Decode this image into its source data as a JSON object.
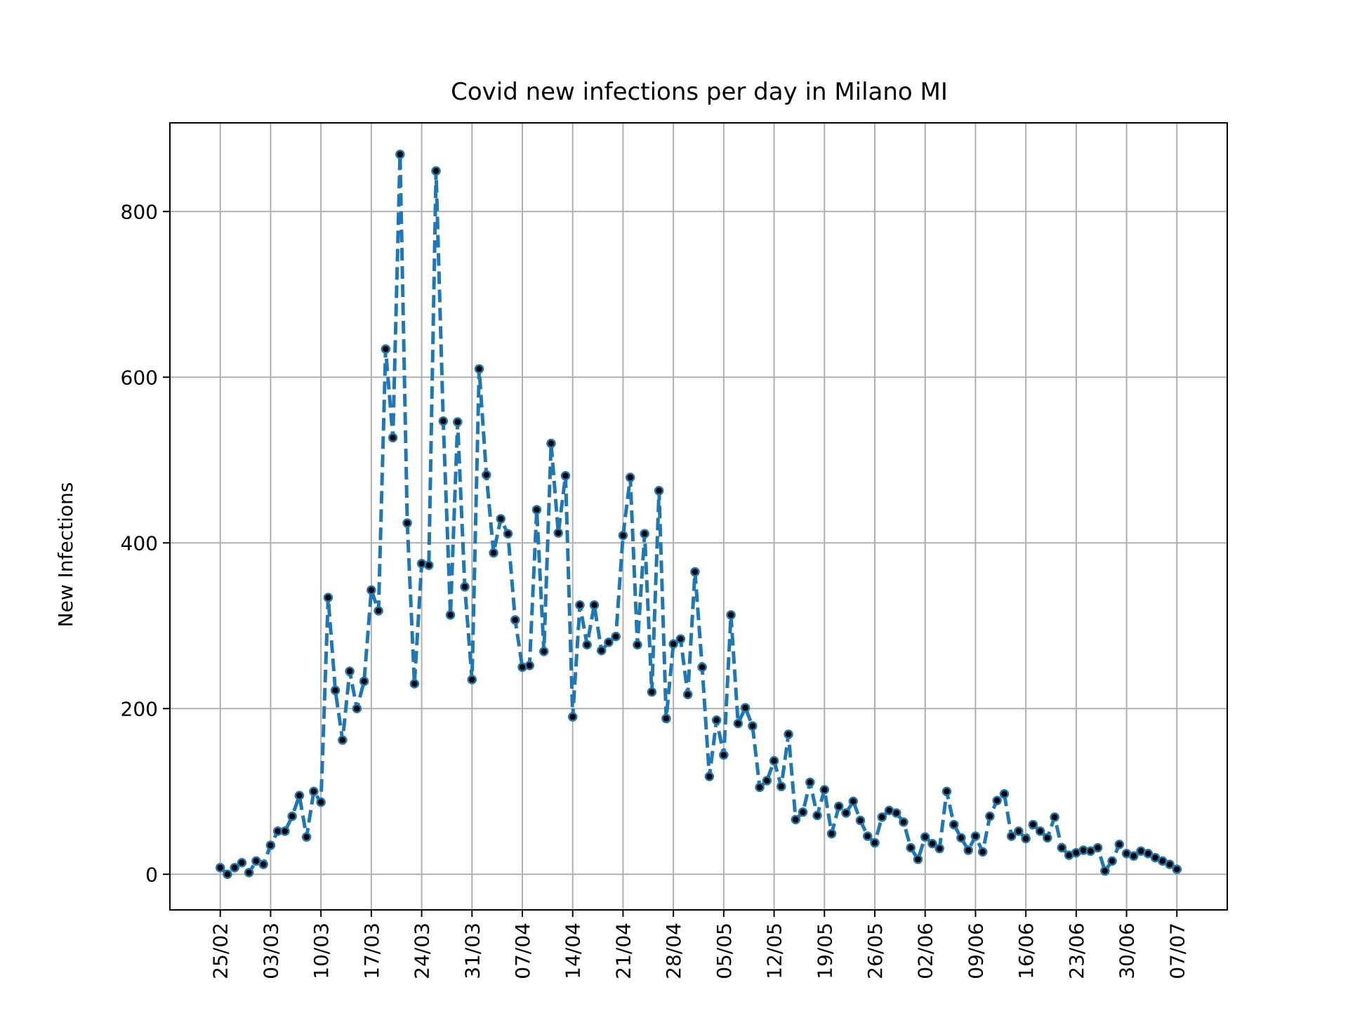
{
  "chart_data": {
    "type": "line",
    "title": "Covid new infections per day in Milano MI",
    "xlabel": "",
    "ylabel": "New Infections",
    "grid": true,
    "ylim": [
      -43,
      907
    ],
    "xlim": [
      "2020-02-18",
      "2020-07-14"
    ],
    "x_start": "2020-02-25",
    "yticks": [
      0,
      200,
      400,
      600,
      800
    ],
    "xtick_labels": [
      "25/02",
      "03/03",
      "10/03",
      "17/03",
      "24/03",
      "31/03",
      "07/04",
      "14/04",
      "21/04",
      "28/04",
      "05/05",
      "12/05",
      "19/05",
      "26/05",
      "02/06",
      "09/06",
      "16/06",
      "23/06",
      "30/06",
      "07/07"
    ],
    "colors": {
      "line": "#1f77b4",
      "marker": "#000000",
      "grid": "#b0b0b0"
    },
    "series": [
      {
        "values": [
          8,
          0,
          8,
          14,
          2,
          16,
          12,
          35,
          52,
          52,
          70,
          95,
          45,
          100,
          87,
          334,
          222,
          162,
          245,
          200,
          233,
          343,
          318,
          634,
          527,
          869,
          424,
          230,
          375,
          373,
          849,
          547,
          313,
          546,
          347,
          235,
          610,
          482,
          388,
          429,
          411,
          307,
          250,
          252,
          440,
          269,
          520,
          412,
          481,
          190,
          325,
          277,
          325,
          270,
          280,
          287,
          409,
          479,
          277,
          411,
          220,
          463,
          188,
          278,
          284,
          217,
          365,
          250,
          118,
          186,
          144,
          313,
          182,
          201,
          179,
          105,
          113,
          137,
          106,
          169,
          66,
          75,
          111,
          71,
          102,
          49,
          82,
          74,
          88,
          65,
          46,
          38,
          69,
          77,
          74,
          63,
          32,
          18,
          45,
          37,
          31,
          100,
          60,
          44,
          29,
          46,
          27,
          70,
          89,
          97,
          46,
          52,
          43,
          60,
          52,
          44,
          69,
          32,
          23,
          26,
          29,
          28,
          32,
          4,
          16,
          36,
          25,
          22,
          28,
          25,
          20,
          16,
          12,
          6
        ]
      }
    ]
  }
}
